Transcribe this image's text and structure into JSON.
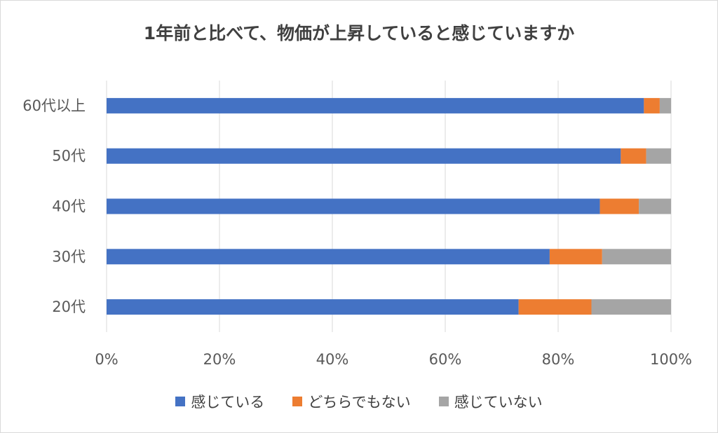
{
  "chart_data": {
    "type": "bar",
    "orientation": "horizontal",
    "stacked": "100%",
    "title": "1年前と比べて、物価が上昇していると感じていますか",
    "categories": [
      "60代以上",
      "50代",
      "40代",
      "30代",
      "20代"
    ],
    "series": [
      {
        "name": "感じている",
        "color": "#4472C4",
        "values": [
          95.2,
          91.1,
          87.4,
          78.5,
          73.0
        ]
      },
      {
        "name": "どちらでもない",
        "color": "#ED7D31",
        "values": [
          2.8,
          4.5,
          6.9,
          9.3,
          12.9
        ]
      },
      {
        "name": "感じていない",
        "color": "#A5A5A5",
        "values": [
          2.0,
          4.4,
          5.7,
          12.2,
          14.1
        ]
      }
    ],
    "x_ticks": [
      "0%",
      "20%",
      "40%",
      "60%",
      "80%",
      "100%"
    ],
    "xlim": [
      0,
      100
    ],
    "grid": true,
    "legend_position": "bottom"
  }
}
